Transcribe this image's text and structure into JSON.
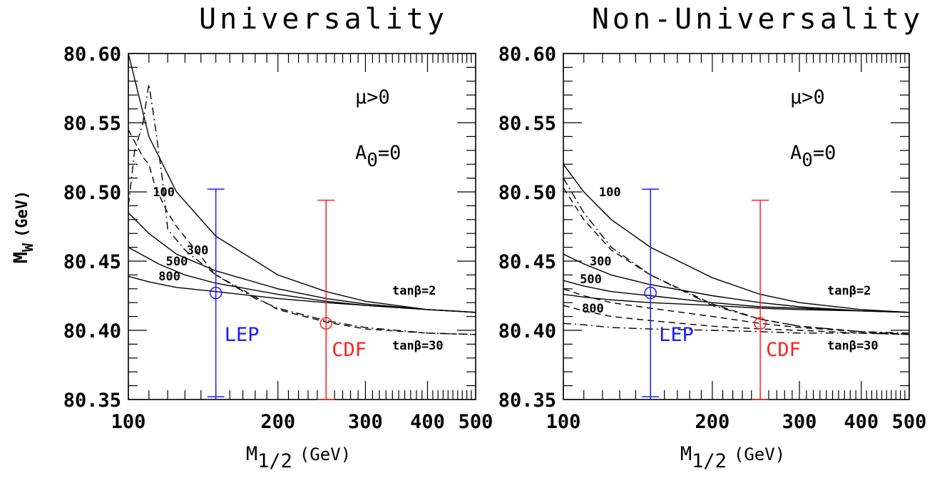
{
  "colors": {
    "lep": "#1a1aff",
    "cdf": "#ff2020",
    "tanbeta": "#22dd22",
    "line": "#000000"
  },
  "ylabel_main": "M",
  "ylabel_sub": "W",
  "ylabel_unit": "(GeV)",
  "xlabel_main": "M",
  "xlabel_sub": "1/2",
  "xlabel_unit": "(GeV)",
  "chart_data": [
    {
      "type": "line",
      "title": "Universality",
      "x_scale": "log",
      "xlim": [
        100,
        500
      ],
      "ylim": [
        80.35,
        80.6
      ],
      "xticks": [
        100,
        200,
        300,
        400,
        500
      ],
      "yticks": [
        "80.35",
        "80.40",
        "80.45",
        "80.50",
        "80.55",
        "80.60"
      ],
      "annotations": {
        "mu": "μ>0",
        "a0_main": "A",
        "a0_sub": "0",
        "a0_value": "=0"
      },
      "tanbeta_labels": [
        "tanβ=2",
        "tanβ=30"
      ],
      "curve_labels": [
        {
          "text": "100",
          "x": 112,
          "y": 80.497
        },
        {
          "text": "300",
          "x": 131,
          "y": 80.455
        },
        {
          "text": "500",
          "x": 119,
          "y": 80.447
        },
        {
          "text": "800",
          "x": 115,
          "y": 80.436
        }
      ],
      "series": [
        {
          "name": "100",
          "group": "tanβ=2",
          "style": "solid",
          "x": [
            100,
            110,
            125,
            150,
            200,
            250,
            300,
            400,
            500
          ],
          "y": [
            80.6,
            80.54,
            80.5,
            80.468,
            80.44,
            80.428,
            80.421,
            80.415,
            80.413
          ]
        },
        {
          "name": "300",
          "group": "tanβ=2",
          "style": "solid",
          "x": [
            100,
            110,
            125,
            150,
            200,
            250,
            300,
            400,
            500
          ],
          "y": [
            80.485,
            80.47,
            80.455,
            80.443,
            80.43,
            80.423,
            80.419,
            80.415,
            80.413
          ]
        },
        {
          "name": "500",
          "group": "tanβ=2",
          "style": "solid",
          "x": [
            100,
            115,
            130,
            150,
            200,
            250,
            300,
            400,
            500
          ],
          "y": [
            80.46,
            80.448,
            80.44,
            80.434,
            80.426,
            80.421,
            80.418,
            80.415,
            80.413
          ]
        },
        {
          "name": "800",
          "group": "tanβ=2",
          "style": "solid",
          "x": [
            100,
            110,
            125,
            150,
            200,
            250,
            300,
            400,
            500
          ],
          "y": [
            80.439,
            80.435,
            80.431,
            80.428,
            80.423,
            80.42,
            80.418,
            80.415,
            80.413
          ]
        },
        {
          "name": "100",
          "group": "tanβ=30",
          "style": "dashdot",
          "x": [
            100,
            103,
            107,
            110,
            113,
            117,
            120,
            130,
            150,
            180,
            200,
            250,
            300,
            400,
            500
          ],
          "y": [
            80.49,
            80.53,
            80.55,
            80.578,
            80.55,
            80.51,
            80.473,
            80.458,
            80.44,
            80.423,
            80.416,
            80.407,
            80.402,
            80.398,
            80.397
          ]
        },
        {
          "name": "300",
          "group": "tanβ=30",
          "style": "dashed",
          "x": [
            100,
            107,
            110,
            113,
            118,
            120,
            125,
            150,
            200,
            250,
            300,
            400,
            500
          ],
          "y": [
            80.545,
            80.525,
            80.52,
            80.505,
            80.49,
            80.485,
            80.475,
            80.44,
            80.415,
            80.406,
            80.401,
            80.398,
            80.397
          ]
        }
      ]
    },
    {
      "type": "line",
      "title": "Non-Universality",
      "x_scale": "log",
      "xlim": [
        100,
        500
      ],
      "ylim": [
        80.35,
        80.6
      ],
      "xticks": [
        100,
        200,
        300,
        400,
        500
      ],
      "yticks": [
        "80.35",
        "80.40",
        "80.45",
        "80.50",
        "80.55",
        "80.60"
      ],
      "annotations": {
        "mu": "μ>0",
        "a0_main": "A",
        "a0_sub": "0",
        "a0_value": "=0"
      },
      "tanbeta_labels": [
        "tanβ=2",
        "tanβ=30"
      ],
      "curve_labels": [
        {
          "text": "100",
          "x": 118,
          "y": 80.497
        },
        {
          "text": "300",
          "x": 113,
          "y": 80.447
        },
        {
          "text": "500",
          "x": 108,
          "y": 80.434
        },
        {
          "text": "800",
          "x": 109,
          "y": 80.413
        }
      ],
      "series": [
        {
          "name": "100",
          "group": "tanβ=2",
          "style": "solid",
          "x": [
            100,
            110,
            125,
            150,
            200,
            250,
            300,
            400,
            500
          ],
          "y": [
            80.52,
            80.5,
            80.48,
            80.46,
            80.438,
            80.426,
            80.42,
            80.415,
            80.413
          ]
        },
        {
          "name": "300",
          "group": "tanβ=2",
          "style": "solid",
          "x": [
            100,
            110,
            125,
            150,
            200,
            250,
            300,
            400,
            500
          ],
          "y": [
            80.455,
            80.448,
            80.44,
            80.433,
            80.425,
            80.42,
            80.417,
            80.414,
            80.413
          ]
        },
        {
          "name": "500",
          "group": "tanβ=2",
          "style": "solid",
          "x": [
            100,
            110,
            125,
            150,
            200,
            250,
            300,
            400,
            500
          ],
          "y": [
            80.436,
            80.432,
            80.428,
            80.425,
            80.42,
            80.417,
            80.416,
            80.414,
            80.413
          ]
        },
        {
          "name": "800",
          "group": "tanβ=2",
          "style": "solid",
          "x": [
            100,
            110,
            125,
            150,
            200,
            250,
            300,
            400,
            500
          ],
          "y": [
            80.426,
            80.424,
            80.422,
            80.42,
            80.418,
            80.416,
            80.415,
            80.414,
            80.413
          ]
        },
        {
          "name": "100",
          "group": "tanβ=30",
          "style": "dashdot",
          "x": [
            100,
            110,
            125,
            150,
            200,
            250,
            300,
            400,
            500
          ],
          "y": [
            80.51,
            80.485,
            80.46,
            80.44,
            80.418,
            80.408,
            80.403,
            80.399,
            80.398
          ]
        },
        {
          "name": "300",
          "group": "tanβ=30",
          "style": "dashed",
          "x": [
            100,
            110,
            125,
            150,
            200,
            250,
            300,
            400,
            500
          ],
          "y": [
            80.503,
            80.48,
            80.458,
            80.44,
            80.419,
            80.408,
            80.403,
            80.399,
            80.397
          ]
        },
        {
          "name": "500",
          "group": "tanβ=30",
          "style": "dashed",
          "x": [
            100,
            110,
            125,
            150,
            200,
            250,
            300,
            400,
            500
          ],
          "y": [
            80.43,
            80.425,
            80.42,
            80.416,
            80.41,
            80.405,
            80.402,
            80.399,
            80.397
          ]
        },
        {
          "name": "800",
          "group": "tanβ=30",
          "style": "dashed",
          "x": [
            100,
            110,
            125,
            150,
            200,
            250,
            300,
            400,
            500
          ],
          "y": [
            80.418,
            80.414,
            80.41,
            80.407,
            80.403,
            80.401,
            80.4,
            80.398,
            80.397
          ]
        },
        {
          "name": "",
          "group": "tanβ=30",
          "style": "dashdot",
          "x": [
            100,
            110,
            125,
            150,
            200,
            250,
            300,
            400,
            500
          ],
          "y": [
            80.405,
            80.404,
            80.402,
            80.401,
            80.4,
            80.399,
            80.398,
            80.398,
            80.397
          ]
        }
      ]
    }
  ],
  "measurements": [
    {
      "label": "LEP",
      "color_key": "lep",
      "x": 150,
      "central": 80.427,
      "low": 80.352,
      "high": 80.502
    },
    {
      "label": "CDF",
      "color_key": "cdf",
      "x": 250,
      "central": 80.405,
      "low": 80.35,
      "high": 80.494
    }
  ]
}
